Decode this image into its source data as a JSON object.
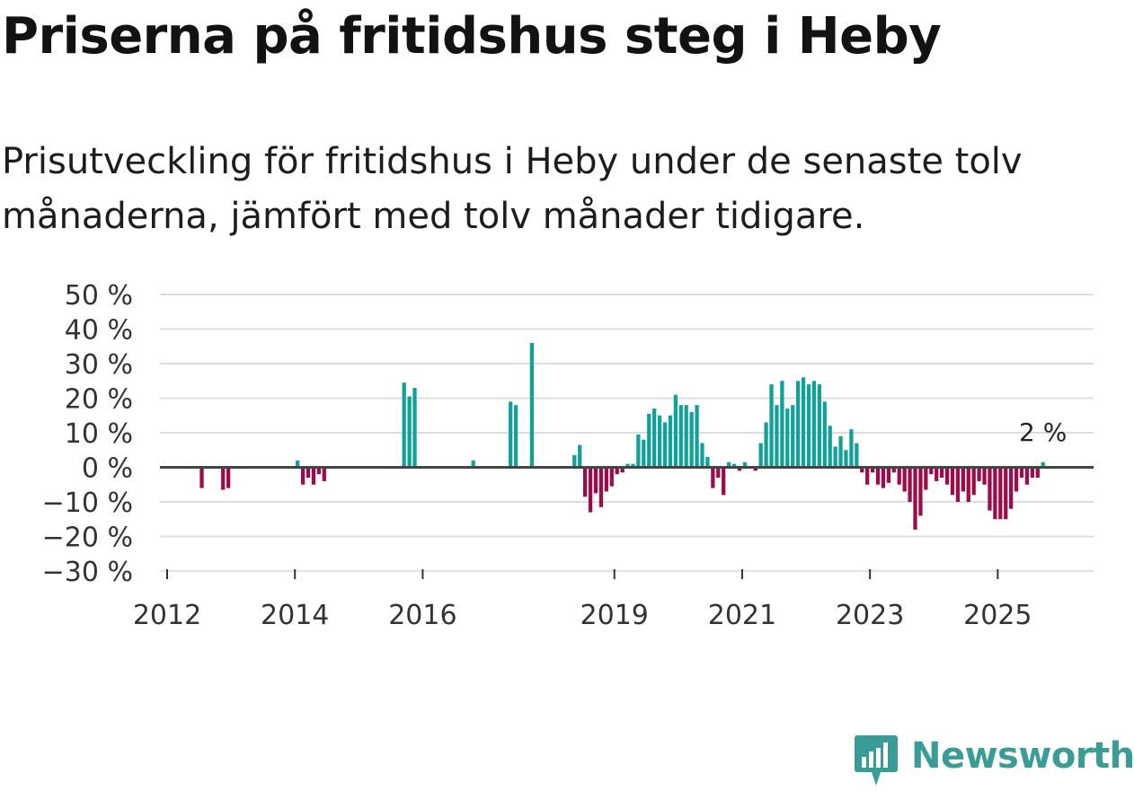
{
  "title": "Priserna på fritidshus steg i Heby",
  "subtitle": "Prisutveckling för fritidshus i Heby under de senaste tolv månaderna, jämfört med tolv månader tidigare.",
  "brand": {
    "name": "Newsworthy",
    "icon": "newsworthy-logo-icon"
  },
  "colors": {
    "positive": "#12a198",
    "negative": "#9d0c4a",
    "gridline": "#dddddd",
    "baseline": "#444444",
    "logo": "#3a9c96"
  },
  "chart_data": {
    "type": "bar",
    "title": "Priserna på fritidshus steg i Heby",
    "ylim": [
      -30,
      50
    ],
    "y_ticks": [
      50,
      40,
      30,
      20,
      10,
      0,
      -10,
      -20,
      -30
    ],
    "y_tick_labels": [
      "50 %",
      "40 %",
      "30 %",
      "20 %",
      "10 %",
      "0 %",
      "−10 %",
      "−20 %",
      "−30 %"
    ],
    "x_ticks": [
      "2012",
      "2014",
      "2016",
      "2019",
      "2021",
      "2023",
      "2025"
    ],
    "grid": true,
    "last_value_label": "2 %",
    "series": [
      {
        "values": [
          {
            "date": "2012-07",
            "value": -6
          },
          {
            "date": "2012-11",
            "value": -6.5
          },
          {
            "date": "2012-12",
            "value": -6
          },
          {
            "date": "2014-01",
            "value": 2
          },
          {
            "date": "2014-02",
            "value": -5
          },
          {
            "date": "2014-03",
            "value": -3
          },
          {
            "date": "2014-04",
            "value": -5
          },
          {
            "date": "2014-05",
            "value": -2
          },
          {
            "date": "2014-06",
            "value": -4
          },
          {
            "date": "2015-09",
            "value": 24.5
          },
          {
            "date": "2015-10",
            "value": 20.5
          },
          {
            "date": "2015-11",
            "value": 23
          },
          {
            "date": "2016-10",
            "value": 2
          },
          {
            "date": "2017-05",
            "value": 19
          },
          {
            "date": "2017-06",
            "value": 18
          },
          {
            "date": "2017-09",
            "value": 36
          },
          {
            "date": "2018-05",
            "value": 3.5
          },
          {
            "date": "2018-06",
            "value": 6.5
          },
          {
            "date": "2018-07",
            "value": -8.5
          },
          {
            "date": "2018-08",
            "value": -13
          },
          {
            "date": "2018-09",
            "value": -7.5
          },
          {
            "date": "2018-10",
            "value": -11.5
          },
          {
            "date": "2018-11",
            "value": -7
          },
          {
            "date": "2018-12",
            "value": -5.5
          },
          {
            "date": "2019-01",
            "value": -2
          },
          {
            "date": "2019-02",
            "value": -1.5
          },
          {
            "date": "2019-03",
            "value": 1
          },
          {
            "date": "2019-04",
            "value": 1
          },
          {
            "date": "2019-05",
            "value": 9.5
          },
          {
            "date": "2019-06",
            "value": 8
          },
          {
            "date": "2019-07",
            "value": 15.5
          },
          {
            "date": "2019-08",
            "value": 17
          },
          {
            "date": "2019-09",
            "value": 15
          },
          {
            "date": "2019-10",
            "value": 13
          },
          {
            "date": "2019-11",
            "value": 15
          },
          {
            "date": "2019-12",
            "value": 21
          },
          {
            "date": "2020-01",
            "value": 18
          },
          {
            "date": "2020-02",
            "value": 18
          },
          {
            "date": "2020-03",
            "value": 16
          },
          {
            "date": "2020-04",
            "value": 18
          },
          {
            "date": "2020-05",
            "value": 7
          },
          {
            "date": "2020-06",
            "value": 3
          },
          {
            "date": "2020-07",
            "value": -6
          },
          {
            "date": "2020-08",
            "value": -3
          },
          {
            "date": "2020-09",
            "value": -8
          },
          {
            "date": "2020-10",
            "value": 1.5
          },
          {
            "date": "2020-11",
            "value": 1
          },
          {
            "date": "2020-12",
            "value": -1
          },
          {
            "date": "2021-01",
            "value": 1.5
          },
          {
            "date": "2021-03",
            "value": -1
          },
          {
            "date": "2021-04",
            "value": 7
          },
          {
            "date": "2021-05",
            "value": 13
          },
          {
            "date": "2021-06",
            "value": 24
          },
          {
            "date": "2021-07",
            "value": 18
          },
          {
            "date": "2021-08",
            "value": 25
          },
          {
            "date": "2021-09",
            "value": 17
          },
          {
            "date": "2021-10",
            "value": 18
          },
          {
            "date": "2021-11",
            "value": 25
          },
          {
            "date": "2021-12",
            "value": 26
          },
          {
            "date": "2022-01",
            "value": 24
          },
          {
            "date": "2022-02",
            "value": 25
          },
          {
            "date": "2022-03",
            "value": 24
          },
          {
            "date": "2022-04",
            "value": 19
          },
          {
            "date": "2022-05",
            "value": 12
          },
          {
            "date": "2022-06",
            "value": 6
          },
          {
            "date": "2022-07",
            "value": 9
          },
          {
            "date": "2022-08",
            "value": 5
          },
          {
            "date": "2022-09",
            "value": 11
          },
          {
            "date": "2022-10",
            "value": 7
          },
          {
            "date": "2022-11",
            "value": -1.5
          },
          {
            "date": "2022-12",
            "value": -5
          },
          {
            "date": "2023-01",
            "value": -1.5
          },
          {
            "date": "2023-02",
            "value": -5
          },
          {
            "date": "2023-03",
            "value": -6
          },
          {
            "date": "2023-04",
            "value": -4.5
          },
          {
            "date": "2023-05",
            "value": -1.5
          },
          {
            "date": "2023-06",
            "value": -5
          },
          {
            "date": "2023-07",
            "value": -7
          },
          {
            "date": "2023-08",
            "value": -10
          },
          {
            "date": "2023-09",
            "value": -18
          },
          {
            "date": "2023-10",
            "value": -14
          },
          {
            "date": "2023-11",
            "value": -6.5
          },
          {
            "date": "2023-12",
            "value": -2
          },
          {
            "date": "2024-01",
            "value": -4
          },
          {
            "date": "2024-02",
            "value": -3
          },
          {
            "date": "2024-03",
            "value": -5
          },
          {
            "date": "2024-04",
            "value": -8
          },
          {
            "date": "2024-05",
            "value": -10
          },
          {
            "date": "2024-06",
            "value": -7
          },
          {
            "date": "2024-07",
            "value": -10
          },
          {
            "date": "2024-08",
            "value": -8
          },
          {
            "date": "2024-09",
            "value": -4
          },
          {
            "date": "2024-10",
            "value": -5
          },
          {
            "date": "2024-11",
            "value": -12.5
          },
          {
            "date": "2024-12",
            "value": -15
          },
          {
            "date": "2025-01",
            "value": -15
          },
          {
            "date": "2025-02",
            "value": -15
          },
          {
            "date": "2025-03",
            "value": -12
          },
          {
            "date": "2025-04",
            "value": -7
          },
          {
            "date": "2025-05",
            "value": -3
          },
          {
            "date": "2025-06",
            "value": -5
          },
          {
            "date": "2025-07",
            "value": -3
          },
          {
            "date": "2025-08",
            "value": -3
          },
          {
            "date": "2025-09",
            "value": 1.5
          }
        ]
      }
    ]
  }
}
